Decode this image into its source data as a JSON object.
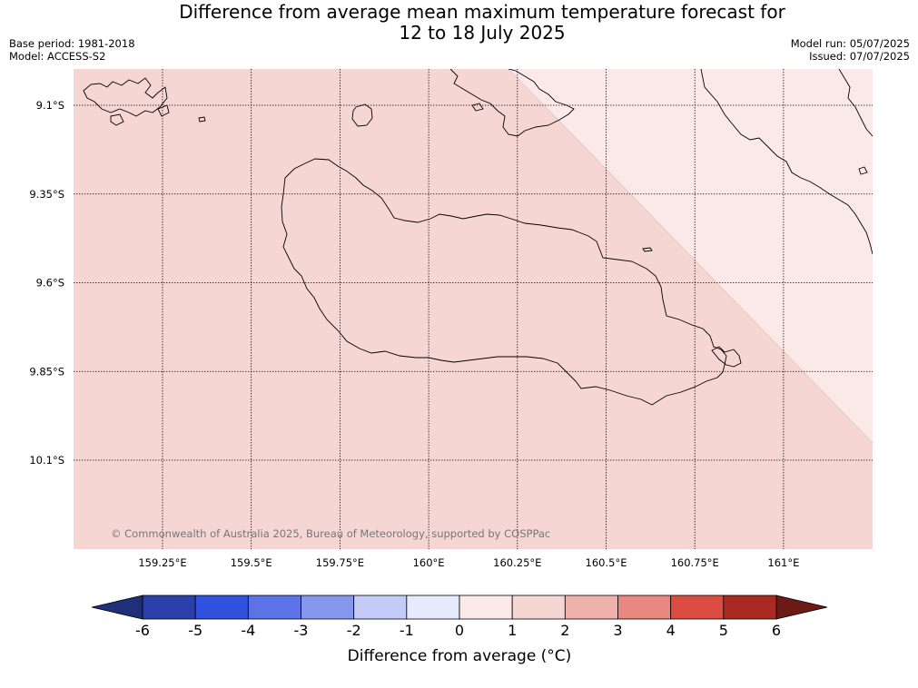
{
  "header": {
    "title_line1": "Difference from average mean maximum temperature forecast for",
    "title_line2": "12 to 18 July 2025",
    "base_period": "Base period: 1981-2018",
    "model": "Model: ACCESS-S2",
    "model_run": "Model run: 05/07/2025",
    "issued": "Issued: 07/07/2025"
  },
  "map": {
    "region": "Guadalcanal, Solomon Islands",
    "latitude_labels": [
      "9.1°S",
      "9.35°S",
      "9.6°S",
      "9.85°S",
      "10.1°S"
    ],
    "longitude_labels": [
      "159.25°E",
      "159.5°E",
      "159.75°E",
      "160°E",
      "160.25°E",
      "160.5°E",
      "160.75°E",
      "161°E"
    ],
    "copyright": "© Commonwealth of Australia 2025, Bureau of Meteorology, supported by COSPPac",
    "fields": [
      {
        "zone": "main-area",
        "difference_range": "1 to 2",
        "color": "#f5d6d3"
      },
      {
        "zone": "north-east-wedge",
        "difference_range": "0 to 1",
        "color": "#fbe9e8"
      }
    ]
  },
  "colorbar": {
    "label": "Difference from average (°C)",
    "ticks": [
      "-6",
      "-5",
      "-4",
      "-3",
      "-2",
      "-1",
      "0",
      "1",
      "2",
      "3",
      "4",
      "5",
      "6"
    ],
    "low_extend_color": "#1f2f7a",
    "high_extend_color": "#6b1a16",
    "bins": [
      {
        "range": "-6 to -5",
        "color": "#2a3fa9"
      },
      {
        "range": "-5 to -4",
        "color": "#3052de"
      },
      {
        "range": "-4 to -3",
        "color": "#5b73e6"
      },
      {
        "range": "-3 to -2",
        "color": "#8598ee"
      },
      {
        "range": "-2 to -1",
        "color": "#c3cbf6"
      },
      {
        "range": "-1 to 0",
        "color": "#e6eafc"
      },
      {
        "range": "0 to 1",
        "color": "#fbe9e8"
      },
      {
        "range": "1 to 2",
        "color": "#f5d6d3"
      },
      {
        "range": "2 to 3",
        "color": "#efb1ab"
      },
      {
        "range": "3 to 4",
        "color": "#e8877f"
      },
      {
        "range": "4 to 5",
        "color": "#dc4c43"
      },
      {
        "range": "5 to 6",
        "color": "#a92a23"
      }
    ]
  }
}
